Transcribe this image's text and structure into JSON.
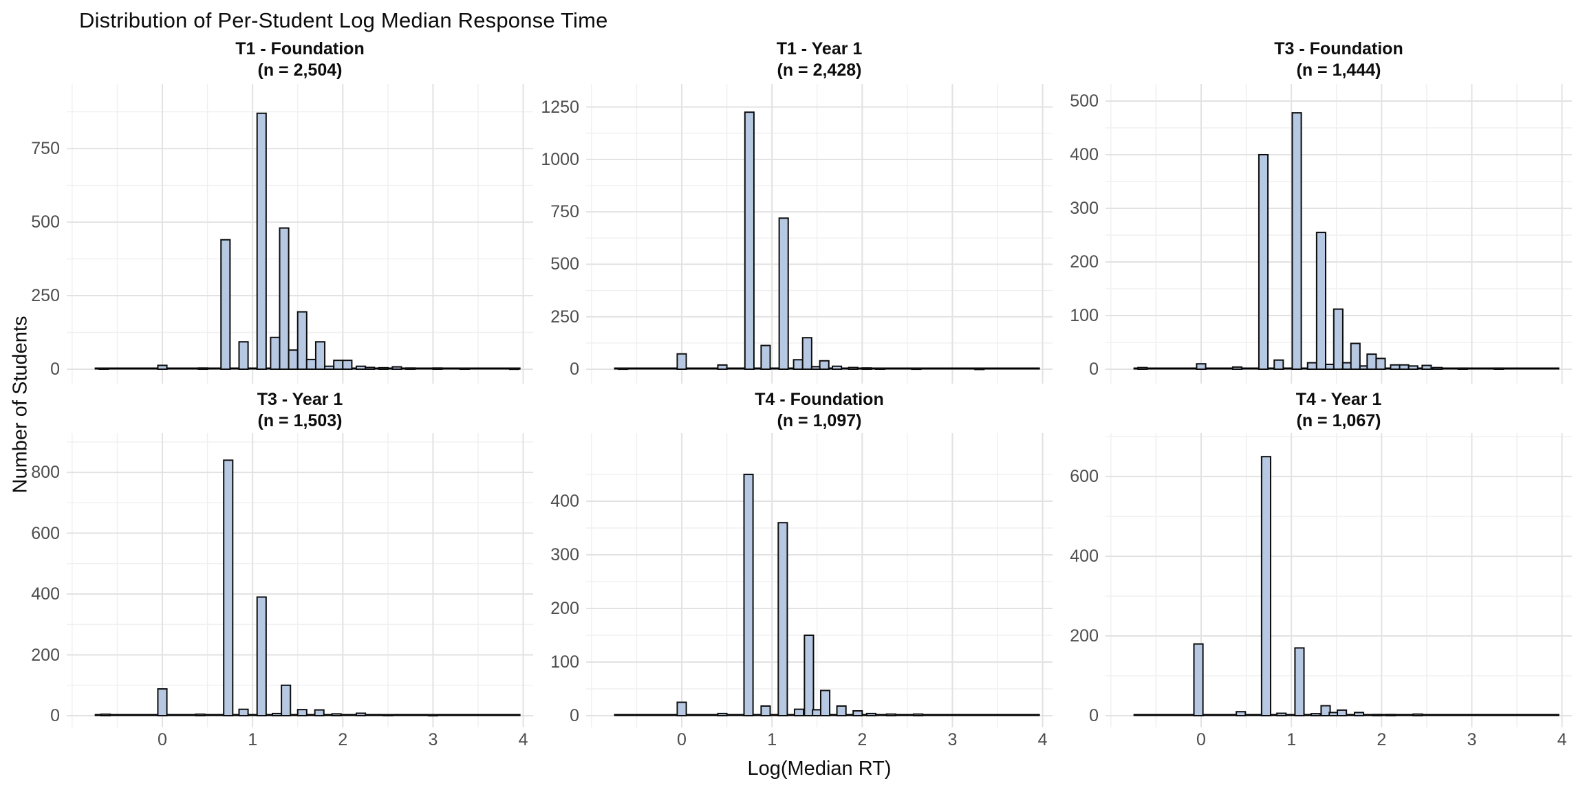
{
  "title": "Distribution of Per-Student Log Median Response Time",
  "x_axis_label": "Log(Median RT)",
  "y_axis_label": "Number of Students",
  "colors": {
    "bar_fill": "#b7c8e2",
    "bar_stroke": "#0d0d0d",
    "grid_major": "#e2e2e2",
    "grid_minor": "#f0f0f0",
    "tick_label": "#4d4d4d",
    "baseline": "#000000",
    "background": "#ffffff"
  },
  "chart_data": [
    {
      "type": "bar",
      "title": "T1 - Foundation",
      "subtitle": "(n = 2,504)",
      "n": 2504,
      "xlabel": "Log(Median RT)",
      "ylabel": "Number of Students",
      "xlim": [
        -1.06,
        4.11
      ],
      "x_ticks": [
        0,
        1,
        2,
        3,
        4
      ],
      "ylim": [
        0,
        970
      ],
      "y_ticks": [
        0,
        250,
        500,
        750
      ],
      "bin_width": 0.1,
      "bins": [
        {
          "x": -0.65,
          "count": 3
        },
        {
          "x": 0.0,
          "count": 13
        },
        {
          "x": 0.45,
          "count": 4
        },
        {
          "x": 0.7,
          "count": 440
        },
        {
          "x": 0.9,
          "count": 93
        },
        {
          "x": 1.1,
          "count": 870
        },
        {
          "x": 1.25,
          "count": 108
        },
        {
          "x": 1.35,
          "count": 480
        },
        {
          "x": 1.45,
          "count": 65
        },
        {
          "x": 1.55,
          "count": 195
        },
        {
          "x": 1.65,
          "count": 33
        },
        {
          "x": 1.75,
          "count": 93
        },
        {
          "x": 1.85,
          "count": 10
        },
        {
          "x": 1.95,
          "count": 30
        },
        {
          "x": 2.05,
          "count": 30
        },
        {
          "x": 2.2,
          "count": 10
        },
        {
          "x": 2.3,
          "count": 6
        },
        {
          "x": 2.45,
          "count": 5
        },
        {
          "x": 2.6,
          "count": 8
        },
        {
          "x": 2.75,
          "count": 4
        },
        {
          "x": 3.05,
          "count": 4
        },
        {
          "x": 3.35,
          "count": 3
        },
        {
          "x": 3.9,
          "count": 2
        }
      ]
    },
    {
      "type": "bar",
      "title": "T1 - Year 1",
      "subtitle": "(n = 2,428)",
      "n": 2428,
      "xlabel": "Log(Median RT)",
      "ylabel": "Number of Students",
      "xlim": [
        -1.06,
        4.11
      ],
      "x_ticks": [
        0,
        1,
        2,
        3,
        4
      ],
      "ylim": [
        0,
        1360
      ],
      "y_ticks": [
        0,
        250,
        500,
        750,
        1000,
        1250
      ],
      "bin_width": 0.1,
      "bins": [
        {
          "x": -0.65,
          "count": 3
        },
        {
          "x": 0.0,
          "count": 73
        },
        {
          "x": 0.45,
          "count": 20
        },
        {
          "x": 0.75,
          "count": 1225
        },
        {
          "x": 0.93,
          "count": 113
        },
        {
          "x": 1.13,
          "count": 720
        },
        {
          "x": 1.29,
          "count": 45
        },
        {
          "x": 1.39,
          "count": 150
        },
        {
          "x": 1.49,
          "count": 12
        },
        {
          "x": 1.58,
          "count": 40
        },
        {
          "x": 1.72,
          "count": 14
        },
        {
          "x": 1.9,
          "count": 8
        },
        {
          "x": 2.05,
          "count": 6
        },
        {
          "x": 2.2,
          "count": 5
        },
        {
          "x": 2.6,
          "count": 3
        },
        {
          "x": 3.3,
          "count": 2
        }
      ]
    },
    {
      "type": "bar",
      "title": "T3 - Foundation",
      "subtitle": "(n = 1,444)",
      "n": 1444,
      "xlabel": "Log(Median RT)",
      "ylabel": "Number of Students",
      "xlim": [
        -1.06,
        4.11
      ],
      "x_ticks": [
        0,
        1,
        2,
        3,
        4
      ],
      "ylim": [
        0,
        532
      ],
      "y_ticks": [
        0,
        100,
        200,
        300,
        400,
        500
      ],
      "bin_width": 0.1,
      "bins": [
        {
          "x": -0.65,
          "count": 3
        },
        {
          "x": 0.0,
          "count": 10
        },
        {
          "x": 0.4,
          "count": 4
        },
        {
          "x": 0.69,
          "count": 400
        },
        {
          "x": 0.86,
          "count": 17
        },
        {
          "x": 1.06,
          "count": 478
        },
        {
          "x": 1.23,
          "count": 12
        },
        {
          "x": 1.33,
          "count": 255
        },
        {
          "x": 1.43,
          "count": 9
        },
        {
          "x": 1.52,
          "count": 112
        },
        {
          "x": 1.62,
          "count": 12
        },
        {
          "x": 1.71,
          "count": 48
        },
        {
          "x": 1.81,
          "count": 6
        },
        {
          "x": 1.89,
          "count": 28
        },
        {
          "x": 1.99,
          "count": 20
        },
        {
          "x": 2.15,
          "count": 8
        },
        {
          "x": 2.25,
          "count": 8
        },
        {
          "x": 2.35,
          "count": 6
        },
        {
          "x": 2.5,
          "count": 7
        },
        {
          "x": 2.62,
          "count": 3
        },
        {
          "x": 2.9,
          "count": 2
        },
        {
          "x": 3.3,
          "count": 2
        }
      ]
    },
    {
      "type": "bar",
      "title": "T3 - Year 1",
      "subtitle": "(n = 1,503)",
      "n": 1503,
      "xlabel": "Log(Median RT)",
      "ylabel": "Number of Students",
      "xlim": [
        -1.06,
        4.11
      ],
      "x_ticks": [
        0,
        1,
        2,
        3,
        4
      ],
      "ylim": [
        0,
        929
      ],
      "y_ticks": [
        0,
        200,
        400,
        600,
        800
      ],
      "bin_width": 0.1,
      "bins": [
        {
          "x": -0.63,
          "count": 5
        },
        {
          "x": 0.0,
          "count": 88
        },
        {
          "x": 0.42,
          "count": 5
        },
        {
          "x": 0.73,
          "count": 840
        },
        {
          "x": 0.9,
          "count": 21
        },
        {
          "x": 1.1,
          "count": 390
        },
        {
          "x": 1.27,
          "count": 7
        },
        {
          "x": 1.37,
          "count": 100
        },
        {
          "x": 1.55,
          "count": 20
        },
        {
          "x": 1.74,
          "count": 19
        },
        {
          "x": 1.93,
          "count": 6
        },
        {
          "x": 2.2,
          "count": 8
        },
        {
          "x": 2.5,
          "count": 3
        },
        {
          "x": 3.0,
          "count": 2
        }
      ]
    },
    {
      "type": "bar",
      "title": "T4 - Foundation",
      "subtitle": "(n = 1,097)",
      "n": 1097,
      "xlabel": "Log(Median RT)",
      "ylabel": "Number of Students",
      "xlim": [
        -1.06,
        4.11
      ],
      "x_ticks": [
        0,
        1,
        2,
        3,
        4
      ],
      "ylim": [
        0,
        527
      ],
      "y_ticks": [
        0,
        100,
        200,
        300,
        400
      ],
      "bin_width": 0.1,
      "bins": [
        {
          "x": 0.0,
          "count": 25
        },
        {
          "x": 0.45,
          "count": 4
        },
        {
          "x": 0.74,
          "count": 450
        },
        {
          "x": 0.93,
          "count": 18
        },
        {
          "x": 1.12,
          "count": 360
        },
        {
          "x": 1.3,
          "count": 12
        },
        {
          "x": 1.41,
          "count": 150
        },
        {
          "x": 1.5,
          "count": 11
        },
        {
          "x": 1.59,
          "count": 47
        },
        {
          "x": 1.77,
          "count": 18
        },
        {
          "x": 1.95,
          "count": 9
        },
        {
          "x": 2.1,
          "count": 4
        },
        {
          "x": 2.32,
          "count": 3
        },
        {
          "x": 2.62,
          "count": 3
        }
      ]
    },
    {
      "type": "bar",
      "title": "T4 - Year 1",
      "subtitle": "(n = 1,067)",
      "n": 1067,
      "xlabel": "Log(Median RT)",
      "ylabel": "Number of Students",
      "xlim": [
        -1.06,
        4.11
      ],
      "x_ticks": [
        0,
        1,
        2,
        3,
        4
      ],
      "ylim": [
        0,
        709
      ],
      "y_ticks": [
        0,
        200,
        400,
        600
      ],
      "bin_width": 0.1,
      "bins": [
        {
          "x": -0.03,
          "count": 180
        },
        {
          "x": 0.44,
          "count": 10
        },
        {
          "x": 0.72,
          "count": 650
        },
        {
          "x": 0.89,
          "count": 6
        },
        {
          "x": 1.09,
          "count": 170
        },
        {
          "x": 1.27,
          "count": 5
        },
        {
          "x": 1.38,
          "count": 25
        },
        {
          "x": 1.47,
          "count": 8
        },
        {
          "x": 1.56,
          "count": 14
        },
        {
          "x": 1.75,
          "count": 8
        },
        {
          "x": 1.95,
          "count": 3
        },
        {
          "x": 2.1,
          "count": 3
        },
        {
          "x": 2.4,
          "count": 4
        }
      ]
    }
  ]
}
